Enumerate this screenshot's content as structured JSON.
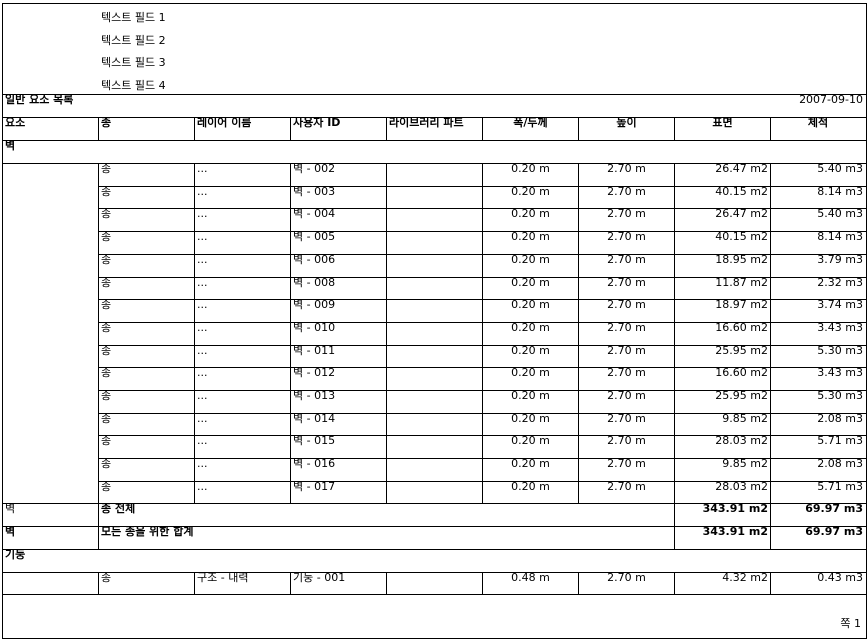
{
  "header_fields": [
    "텍스트 필드 1",
    "텍스트 필드 2",
    "텍스트 필드 3",
    "텍스트 필드 4"
  ],
  "report_title": "일반 요소 목록",
  "report_date": "2007-09-10",
  "columns": [
    "요소",
    "종",
    "레이어 이름",
    "사용자 ID",
    "라이브러리 파트",
    "폭/두께",
    "높이",
    "표면",
    "체적"
  ],
  "groups": {
    "wall": {
      "label": "벽",
      "rows": [
        [
          "",
          "종",
          "...",
          "벽 - 002",
          "",
          "0.20 m",
          "2.70 m",
          "26.47 m2",
          "5.40 m3"
        ],
        [
          "",
          "종",
          "...",
          "벽 - 003",
          "",
          "0.20 m",
          "2.70 m",
          "40.15 m2",
          "8.14 m3"
        ],
        [
          "",
          "종",
          "...",
          "벽 - 004",
          "",
          "0.20 m",
          "2.70 m",
          "26.47 m2",
          "5.40 m3"
        ],
        [
          "",
          "종",
          "...",
          "벽 - 005",
          "",
          "0.20 m",
          "2.70 m",
          "40.15 m2",
          "8.14 m3"
        ],
        [
          "",
          "종",
          "...",
          "벽 - 006",
          "",
          "0.20 m",
          "2.70 m",
          "18.95 m2",
          "3.79 m3"
        ],
        [
          "",
          "종",
          "...",
          "벽 - 008",
          "",
          "0.20 m",
          "2.70 m",
          "11.87 m2",
          "2.32 m3"
        ],
        [
          "",
          "종",
          "...",
          "벽 - 009",
          "",
          "0.20 m",
          "2.70 m",
          "18.97 m2",
          "3.74 m3"
        ],
        [
          "",
          "종",
          "...",
          "벽 - 010",
          "",
          "0.20 m",
          "2.70 m",
          "16.60 m2",
          "3.43 m3"
        ],
        [
          "",
          "종",
          "...",
          "벽 - 011",
          "",
          "0.20 m",
          "2.70 m",
          "25.95 m2",
          "5.30 m3"
        ],
        [
          "",
          "종",
          "...",
          "벽 - 012",
          "",
          "0.20 m",
          "2.70 m",
          "16.60 m2",
          "3.43 m3"
        ],
        [
          "",
          "종",
          "...",
          "벽 - 013",
          "",
          "0.20 m",
          "2.70 m",
          "25.95 m2",
          "5.30 m3"
        ],
        [
          "",
          "종",
          "...",
          "벽 - 014",
          "",
          "0.20 m",
          "2.70 m",
          "9.85 m2",
          "2.08 m3"
        ],
        [
          "",
          "종",
          "...",
          "벽 - 015",
          "",
          "0.20 m",
          "2.70 m",
          "28.03 m2",
          "5.71 m3"
        ],
        [
          "",
          "종",
          "...",
          "벽 - 016",
          "",
          "0.20 m",
          "2.70 m",
          "9.85 m2",
          "2.08 m3"
        ],
        [
          "",
          "종",
          "...",
          "벽 - 017",
          "",
          "0.20 m",
          "2.70 m",
          "28.03 m2",
          "5.71 m3"
        ]
      ],
      "subtotal": {
        "element": "벽",
        "label": "종 전체",
        "surface": "343.91 m2",
        "volume": "69.97 m3"
      },
      "total": {
        "element": "벽",
        "label": "모든 종을 위한 합계",
        "surface": "343.91 m2",
        "volume": "69.97 m3"
      }
    },
    "column": {
      "label": "기둥",
      "rows": [
        [
          "",
          "종",
          "구조 - 내력",
          "기둥 - 001",
          "",
          "0.48 m",
          "2.70 m",
          "4.32 m2",
          "0.43 m3"
        ]
      ]
    }
  },
  "footer": {
    "page_label": "쪽 1"
  }
}
